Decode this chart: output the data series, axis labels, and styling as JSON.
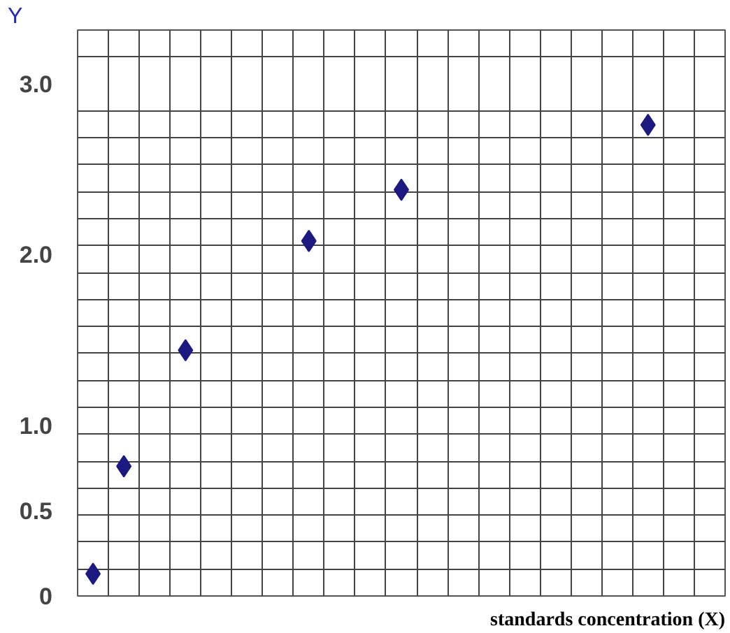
{
  "chart_data": {
    "type": "scatter",
    "xlabel": "standards concentration (X)",
    "ylabel": "Y",
    "categories": [
      null,
      null,
      null,
      null,
      null,
      null,
      null,
      null,
      null,
      null,
      null,
      null,
      null,
      null,
      null,
      null,
      null,
      null,
      null,
      null,
      null
    ],
    "series": [
      {
        "color": "#1c1a80",
        "values": [
          0.13,
          0.76,
          null,
          1.44,
          null,
          null,
          null,
          2.08,
          null,
          null,
          2.38,
          null,
          null,
          null,
          null,
          null,
          null,
          null,
          2.76,
          null,
          null
        ]
      }
    ],
    "marker": "diamond",
    "grid": true,
    "tick_labels": "y",
    "ylim": [
      0,
      3.316
    ],
    "yticks": [
      {
        "value": 0,
        "label": "0"
      },
      {
        "value": 0.5,
        "label": "0.5"
      },
      {
        "value": 1,
        "label": "1.0"
      },
      {
        "value": 2,
        "label": "2.0"
      },
      {
        "value": 3,
        "label": "3.0"
      },
      {
        "value": 0.158,
        "label": null
      },
      {
        "value": 0.316,
        "label": null
      },
      {
        "value": 0.474,
        "label": null
      },
      {
        "value": 0.632,
        "label": null
      },
      {
        "value": 0.789,
        "label": null
      },
      {
        "value": 0.947,
        "label": null
      },
      {
        "value": 1.105,
        "label": null
      },
      {
        "value": 1.263,
        "label": null
      },
      {
        "value": 1.421,
        "label": null
      },
      {
        "value": 1.579,
        "label": null
      },
      {
        "value": 1.737,
        "label": null
      },
      {
        "value": 1.895,
        "label": null
      },
      {
        "value": 2.053,
        "label": null
      },
      {
        "value": 2.211,
        "label": null
      },
      {
        "value": 2.368,
        "label": null
      },
      {
        "value": 2.526,
        "label": null
      },
      {
        "value": 2.684,
        "label": null
      },
      {
        "value": 2.842,
        "label": null
      },
      {
        "value": 3.158,
        "label": null
      },
      {
        "value": 3.316,
        "label": null
      }
    ]
  }
}
